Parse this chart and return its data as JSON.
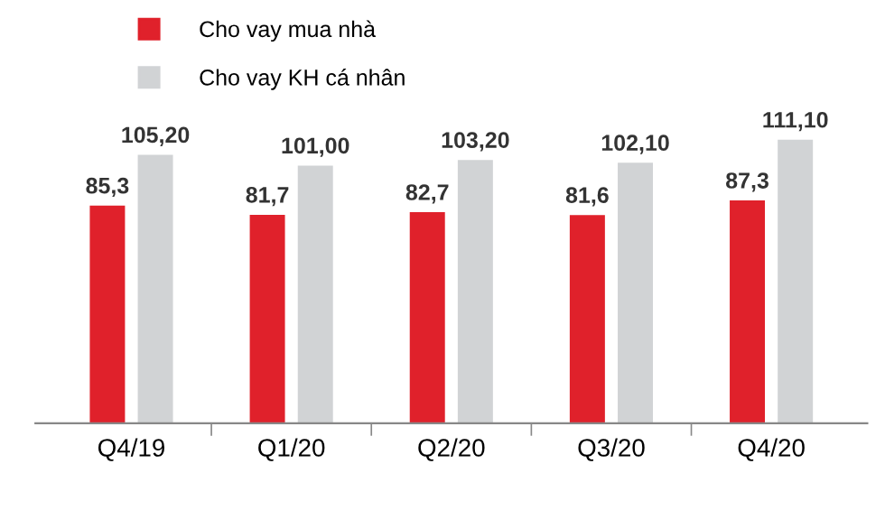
{
  "chart_data": {
    "type": "bar",
    "categories": [
      "Q4/19",
      "Q1/20",
      "Q2/20",
      "Q3/20",
      "Q4/20"
    ],
    "series": [
      {
        "name": "Cho vay mua nhà",
        "color": "#e0212b",
        "values": [
          85.3,
          81.7,
          82.7,
          81.6,
          87.3
        ],
        "value_labels": [
          "85,3",
          "81,7",
          "82,7",
          "81,6",
          "87,3"
        ]
      },
      {
        "name": "Cho vay KH cá nhân",
        "color": "#d1d3d5",
        "values": [
          105.2,
          101.0,
          103.2,
          102.1,
          111.1
        ],
        "value_labels": [
          "105,20",
          "101,00",
          "103,20",
          "102,10",
          "111,10"
        ]
      }
    ],
    "legend": "top left"
  }
}
